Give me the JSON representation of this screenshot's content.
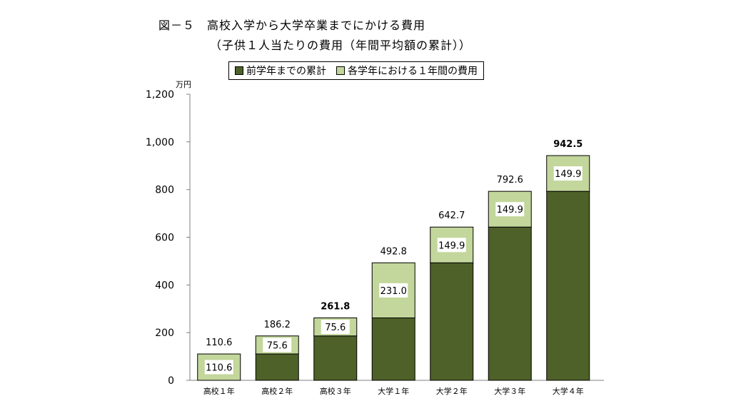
{
  "title": "図－５　高校入学から大学卒業までにかける費用",
  "subtitle": "（子供１人当たりの費用（年間平均額の累計））",
  "unit_label": "万円",
  "chart_data": {
    "type": "bar",
    "stacked": true,
    "categories": [
      "高校１年",
      "高校２年",
      "高校３年",
      "大学１年",
      "大学２年",
      "大学３年",
      "大学４年"
    ],
    "series": [
      {
        "name": "前学年までの累計",
        "color": "#4e6128",
        "values": [
          0,
          110.6,
          186.2,
          261.8,
          492.8,
          642.7,
          792.6
        ]
      },
      {
        "name": "各学年における１年間の費用",
        "color": "#c3d69b",
        "values": [
          110.6,
          75.6,
          75.6,
          231.0,
          149.9,
          149.9,
          149.9
        ]
      }
    ],
    "segment_labels": [
      "110.6",
      "75.6",
      "75.6",
      "231.0",
      "149.9",
      "149.9",
      "149.9"
    ],
    "total_labels": [
      "110.6",
      "186.2",
      "261.8",
      "492.8",
      "642.7",
      "792.6",
      "942.5"
    ],
    "bold_totals": [
      "261.8",
      "942.5"
    ],
    "ylim": [
      0,
      1200
    ],
    "yticks": [
      0,
      200,
      400,
      600,
      800,
      1000,
      1200
    ],
    "ytick_labels": [
      "0",
      "200",
      "400",
      "600",
      "800",
      "1,000",
      "1,200"
    ],
    "legend_position": "top",
    "grid": false
  }
}
